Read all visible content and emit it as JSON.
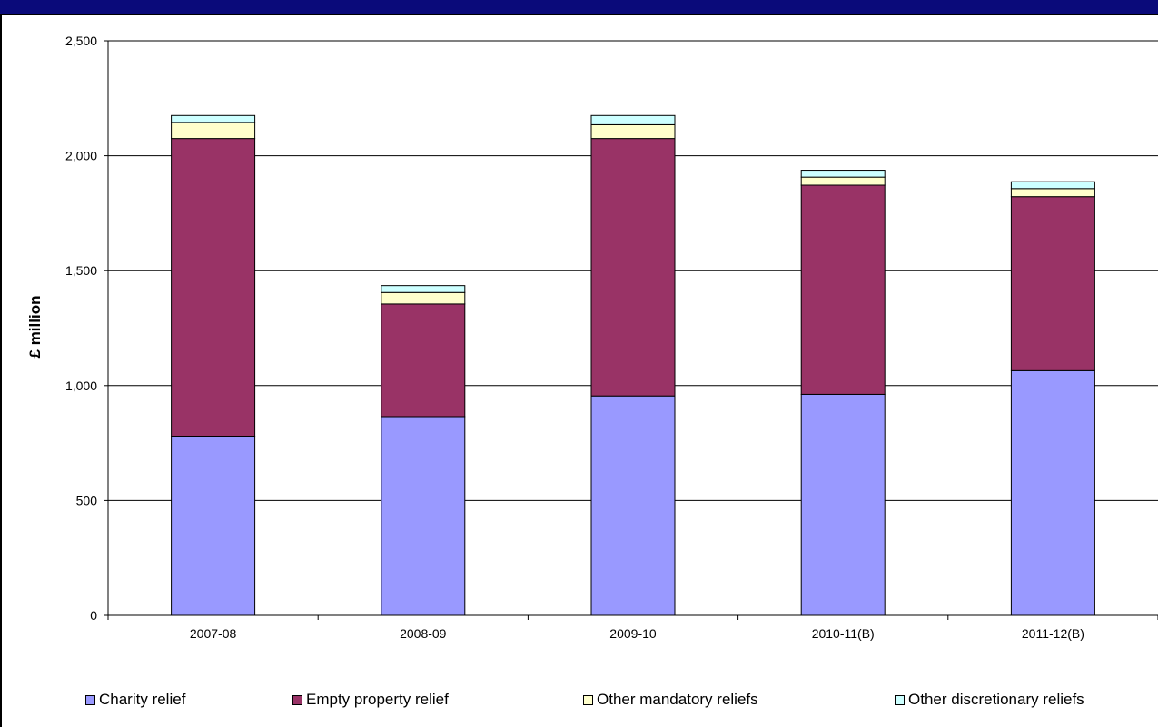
{
  "chart_data": {
    "type": "bar",
    "stacked": true,
    "title": "",
    "xlabel": "",
    "ylabel": "£ million",
    "ylim": [
      0,
      2500
    ],
    "yticks": [
      0,
      500,
      1000,
      1500,
      2000,
      2500
    ],
    "ytick_labels": [
      "0",
      "500",
      "1,000",
      "1,500",
      "2,000",
      "2,500"
    ],
    "grid": true,
    "legend_position": "bottom",
    "categories": [
      "2007-08",
      "2008-09",
      "2009-10",
      "2010-11(B)",
      "2011-12(B)"
    ],
    "series": [
      {
        "name": "Charity relief",
        "color": "#9999ff",
        "values": [
          780,
          865,
          955,
          962,
          1065
        ]
      },
      {
        "name": "Empty property relief",
        "color": "#993366",
        "values": [
          1295,
          490,
          1120,
          910,
          757
        ]
      },
      {
        "name": "Other mandatory reliefs",
        "color": "#ffffcc",
        "values": [
          70,
          50,
          60,
          35,
          35
        ]
      },
      {
        "name": "Other discretionary reliefs",
        "color": "#ccffff",
        "values": [
          30,
          30,
          40,
          30,
          30
        ]
      }
    ]
  }
}
